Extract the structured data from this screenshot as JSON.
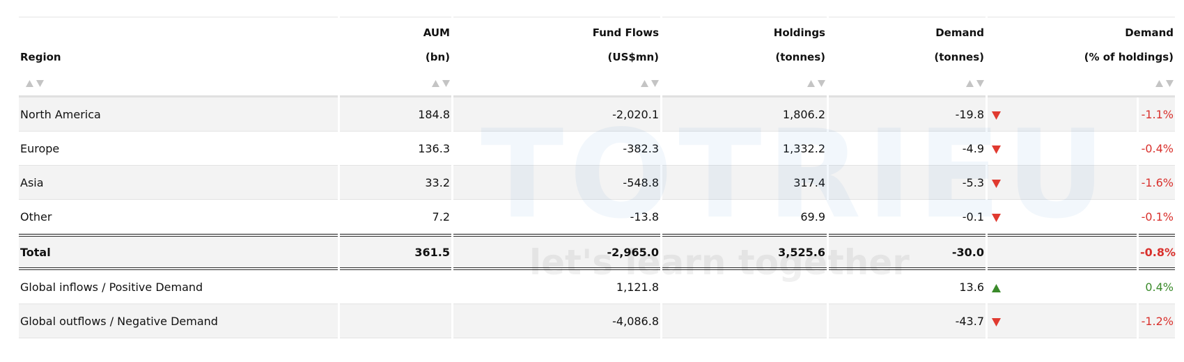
{
  "watermark": {
    "brand": "TOTRIEU",
    "tagline": "let's learn together"
  },
  "table": {
    "headers": [
      {
        "label": "Region"
      },
      {
        "label": "AUM",
        "unit": "(bn)"
      },
      {
        "label": "Fund Flows",
        "unit": "(US$mn)"
      },
      {
        "label": "Holdings",
        "unit": "(tonnes)"
      },
      {
        "label": "Demand",
        "unit": "(tonnes)"
      },
      {
        "label": "Demand",
        "unit": "(% of holdings)"
      }
    ],
    "rows": [
      [
        "North America",
        "184.8",
        "-2,020.1",
        "1,806.2",
        "-19.8",
        "-1.1%"
      ],
      [
        "Europe",
        "136.3",
        "-382.3",
        "1,332.2",
        "-4.9",
        "-0.4%"
      ],
      [
        "Asia",
        "33.2",
        "-548.8",
        "317.4",
        "-5.3",
        "-1.6%"
      ],
      [
        "Other",
        "7.2",
        "-13.8",
        "69.9",
        "-0.1",
        "-0.1%"
      ]
    ],
    "total": [
      "Total",
      "361.5",
      "-2,965.0",
      "3,525.6",
      "-30.0",
      "-0.8%"
    ],
    "global_rows": [
      [
        "Global inflows / Positive Demand",
        null,
        "1,121.8",
        null,
        "13.6",
        "0.4%"
      ],
      [
        "Global outflows / Negative Demand",
        null,
        "-4,086.8",
        null,
        "-43.7",
        "-1.2%"
      ]
    ]
  }
}
